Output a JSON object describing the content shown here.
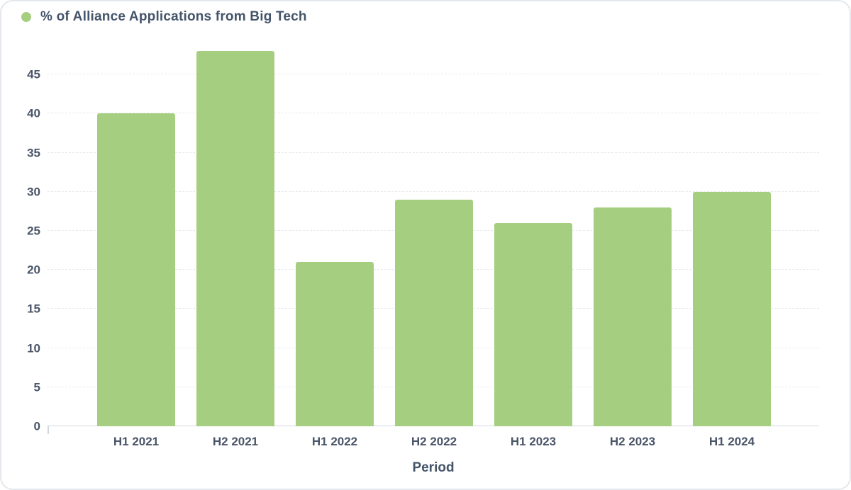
{
  "legend": {
    "label": "% of Alliance Applications from Big Tech"
  },
  "colors": {
    "bar": "#a6ce80",
    "legend_dot": "#a6ce80",
    "tick_text": "#4a5568",
    "title_text": "#44546a",
    "grid": "#e7eaee",
    "axis": "#d2d7de",
    "card_border": "#e4e7ec"
  },
  "chart_data": {
    "type": "bar",
    "title": "% of Alliance Applications from Big Tech",
    "categories": [
      "H1 2021",
      "H2 2021",
      "H1 2022",
      "H2 2022",
      "H1 2023",
      "H2 2023",
      "H1 2024"
    ],
    "values": [
      40,
      48,
      21,
      29,
      26,
      28,
      30
    ],
    "xlabel": "Period",
    "ylabel": "",
    "ylim": [
      0,
      48
    ],
    "yticks": [
      0,
      5,
      10,
      15,
      20,
      25,
      30,
      35,
      40,
      45
    ],
    "legend_position": "top-left",
    "grid": "horizontal-dashed"
  }
}
